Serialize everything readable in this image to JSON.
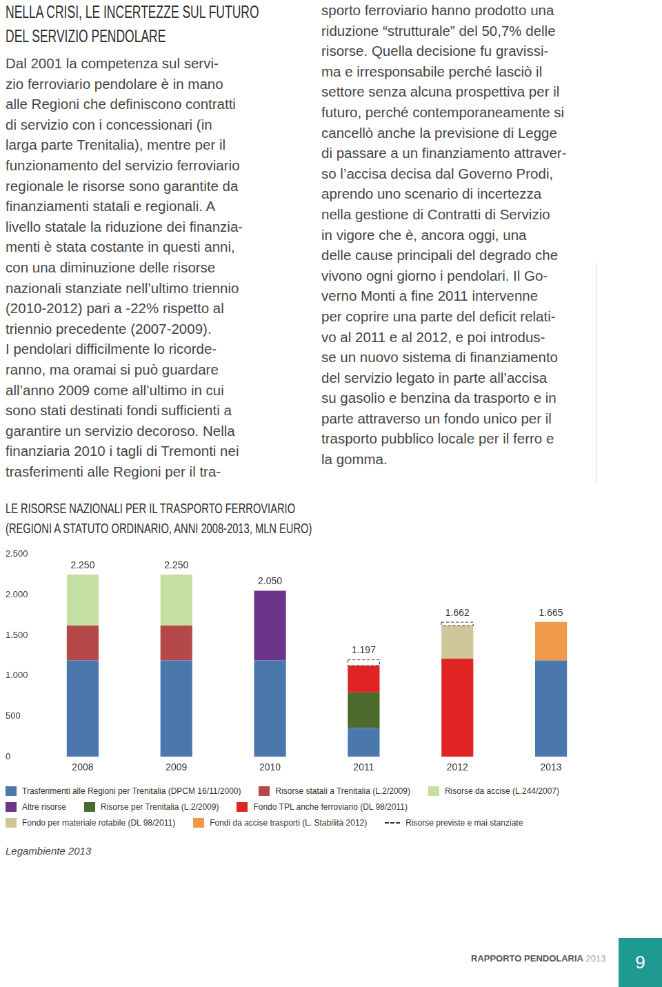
{
  "article": {
    "heading": [
      "NELLA CRISI, LE INCERTEZZE SUL FUTURO",
      "DEL SERVIZIO PENDOLARE"
    ],
    "left_lines": [
      "Dal 2001 la competenza sul servi-",
      "zio ferroviario pendolare è in mano",
      "alle Regioni che definiscono contratti",
      "di servizio con i concessionari (in",
      "larga parte Trenitalia), mentre per il",
      "funzionamento del servizio ferroviario",
      "regionale le risorse sono garantite da",
      "finanziamenti statali e regionali. A",
      "livello statale la riduzione dei finanzia-",
      "menti è stata costante in questi anni,",
      "con una diminuzione delle risorse",
      "nazionali stanziate nell’ultimo triennio",
      "(2010-2012) pari a -22% rispetto al",
      "triennio precedente (2007-2009).",
      "I pendolari difficilmente lo ricorde-",
      "ranno, ma oramai si può guardare",
      "all’anno 2009 come all’ultimo in cui",
      "sono stati destinati fondi sufficienti a",
      "garantire un servizio decoroso. Nella",
      "finanziaria 2010 i tagli di Tremonti nei",
      "trasferimenti alle Regioni per il tra-"
    ],
    "right_lines": [
      "sporto ferroviario hanno prodotto una",
      "riduzione “strutturale” del 50,7% delle",
      "risorse. Quella decisione fu gravissi-",
      "ma e irresponsabile perché lasciò il",
      "settore senza alcuna prospettiva per il",
      "futuro, perché contemporaneamente si",
      "cancellò anche la previsione di Legge",
      "di passare a un finanziamento attraver-",
      "so l’accisa decisa dal Governo Prodi,",
      "aprendo uno scenario di incertezza",
      "nella gestione di Contratti di Servizio",
      "in vigore che è, ancora oggi, una",
      "delle cause principali del degrado che",
      "vivono ogni giorno i pendolari. Il Go-",
      "verno Monti a fine 2011 intervenne",
      "per coprire una parte del deficit relati-",
      "vo al 2011 e al 2012, e poi introdus-",
      "se un nuovo sistema di finanziamento",
      "del servizio legato in parte all’accisa",
      "su gasolio e benzina da trasporto e in",
      "parte attraverso un fondo unico per il",
      "trasporto pubblico locale per il ferro e",
      "la gomma."
    ]
  },
  "chart_data": {
    "type": "bar",
    "title": "LE RISORSE NAZIONALI PER IL TRASPORTO FERROVIARIO",
    "subtitle": "(REGIONI A STATUTO ORDINARIO, ANNI 2008-2013, MLN EURO)",
    "categories": [
      "2008",
      "2009",
      "2010",
      "2011",
      "2012",
      "2013"
    ],
    "stacked": true,
    "grid": false,
    "legend": "bottom",
    "ylim": [
      0,
      2500
    ],
    "yticks": [
      0,
      500,
      {
        "value": 1000,
        "label": "1.000"
      },
      {
        "value": 1500,
        "label": "1.500"
      },
      {
        "value": 2000,
        "label": "2.000"
      },
      {
        "value": 2500,
        "label": "2.500"
      }
    ],
    "series": [
      {
        "name": "Trasferimenti alle Regioni per Trenitalia (DPCM 16/11/2000)",
        "color": "#4a78ad",
        "values": [
          1190,
          1190,
          1190,
          355,
          null,
          1190
        ]
      },
      {
        "name": "Risorse statali a Trenitalia (L.2/2009)",
        "color": "#b5494a",
        "values": [
          430,
          430,
          null,
          null,
          null,
          null
        ]
      },
      {
        "name": "Risorse da accise (L.244/2007)",
        "color": "#c5dfa0",
        "values": [
          630,
          630,
          null,
          null,
          null,
          null
        ]
      },
      {
        "name": "Altre risorse",
        "color": "#6a358a",
        "values": [
          null,
          null,
          860,
          null,
          null,
          null
        ]
      },
      {
        "name": "Risorse per Trenitalia (L.2/2009)",
        "color": "#4c6a2c",
        "values": [
          null,
          null,
          null,
          440,
          null,
          null
        ]
      },
      {
        "name": "Fondo TPL anche ferroviario (DL 98/2011)",
        "color": "#e02424",
        "values": [
          null,
          null,
          null,
          330,
          1210,
          null
        ]
      },
      {
        "name": "Fondo per materiale rotabile (DL 98/2011)",
        "color": "#cfc49a",
        "values": [
          null,
          null,
          null,
          null,
          410,
          null
        ]
      },
      {
        "name": "Fondi da accise trasporti (L. Stabilità 2012)",
        "color": "#ef9a4a",
        "values": [
          null,
          null,
          null,
          null,
          null,
          475
        ]
      },
      {
        "name": "Risorse previste e mai stanziate",
        "color": "#333333",
        "line_style": "dashed",
        "values": [
          null,
          null,
          null,
          72,
          42,
          null
        ]
      }
    ],
    "annotations": [
      {
        "category": "2008",
        "value": 2250,
        "label": "2.250"
      },
      {
        "category": "2009",
        "value": 2250,
        "label": "2.250"
      },
      {
        "category": "2010",
        "value": 2050,
        "label": "2.050"
      },
      {
        "category": "2011",
        "value": 1197,
        "label": "1.197"
      },
      {
        "category": "2012",
        "value": 1662,
        "label": "1.662"
      },
      {
        "category": "2013",
        "value": 1665,
        "label": "1.665"
      }
    ]
  },
  "source": "Legambiente 2013",
  "footer": {
    "report": "RAPPORTO PENDOLARIA",
    "year": "2013",
    "page": "9"
  }
}
